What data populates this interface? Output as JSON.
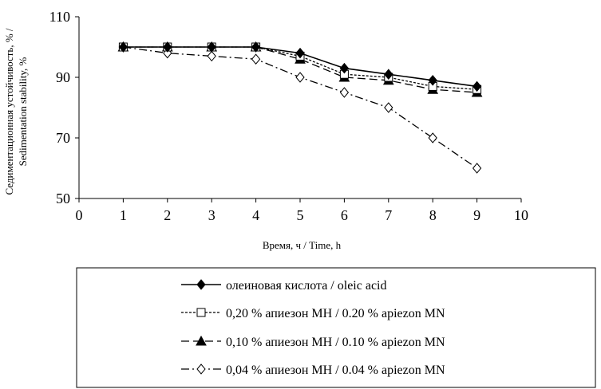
{
  "chart_data": {
    "type": "line",
    "title": "",
    "xlabel": "Время, ч / Time, h",
    "ylabel_lines": [
      "Седиментационная устойчивость, % /",
      "Sedimentation stability, %"
    ],
    "xlim": [
      0,
      10
    ],
    "ylim": [
      50,
      110
    ],
    "xticks": [
      "0",
      "1",
      "2",
      "3",
      "4",
      "5",
      "6",
      "7",
      "8",
      "9",
      "10"
    ],
    "yticks": [
      "50",
      "70",
      "90",
      "110"
    ],
    "grid": false,
    "legend_position": "bottom",
    "x": [
      1,
      2,
      3,
      4,
      5,
      6,
      7,
      8,
      9
    ],
    "series": [
      {
        "name": "олеиновая кислота / oleic acid",
        "marker": "diamond-filled",
        "dash": "solid",
        "values": [
          100,
          100,
          100,
          100,
          98,
          93,
          91,
          89,
          87
        ]
      },
      {
        "name": "0,20 % апиезон МН / 0.20 % apiezon MN",
        "marker": "square-open",
        "dash": "dotted",
        "values": [
          100,
          100,
          100,
          100,
          97,
          91,
          90,
          87,
          86
        ]
      },
      {
        "name": "0,10 % апиезон МН / 0.10 % apiezon MN",
        "marker": "triangle-filled",
        "dash": "dashed",
        "values": [
          100,
          100,
          100,
          100,
          96,
          90,
          89,
          86,
          85
        ]
      },
      {
        "name": "0,04 % апиезон МН / 0.04 % apiezon MN",
        "marker": "diamond-open",
        "dash": "dash-dot",
        "values": [
          100,
          98,
          97,
          96,
          90,
          85,
          80,
          70,
          60
        ]
      }
    ]
  }
}
